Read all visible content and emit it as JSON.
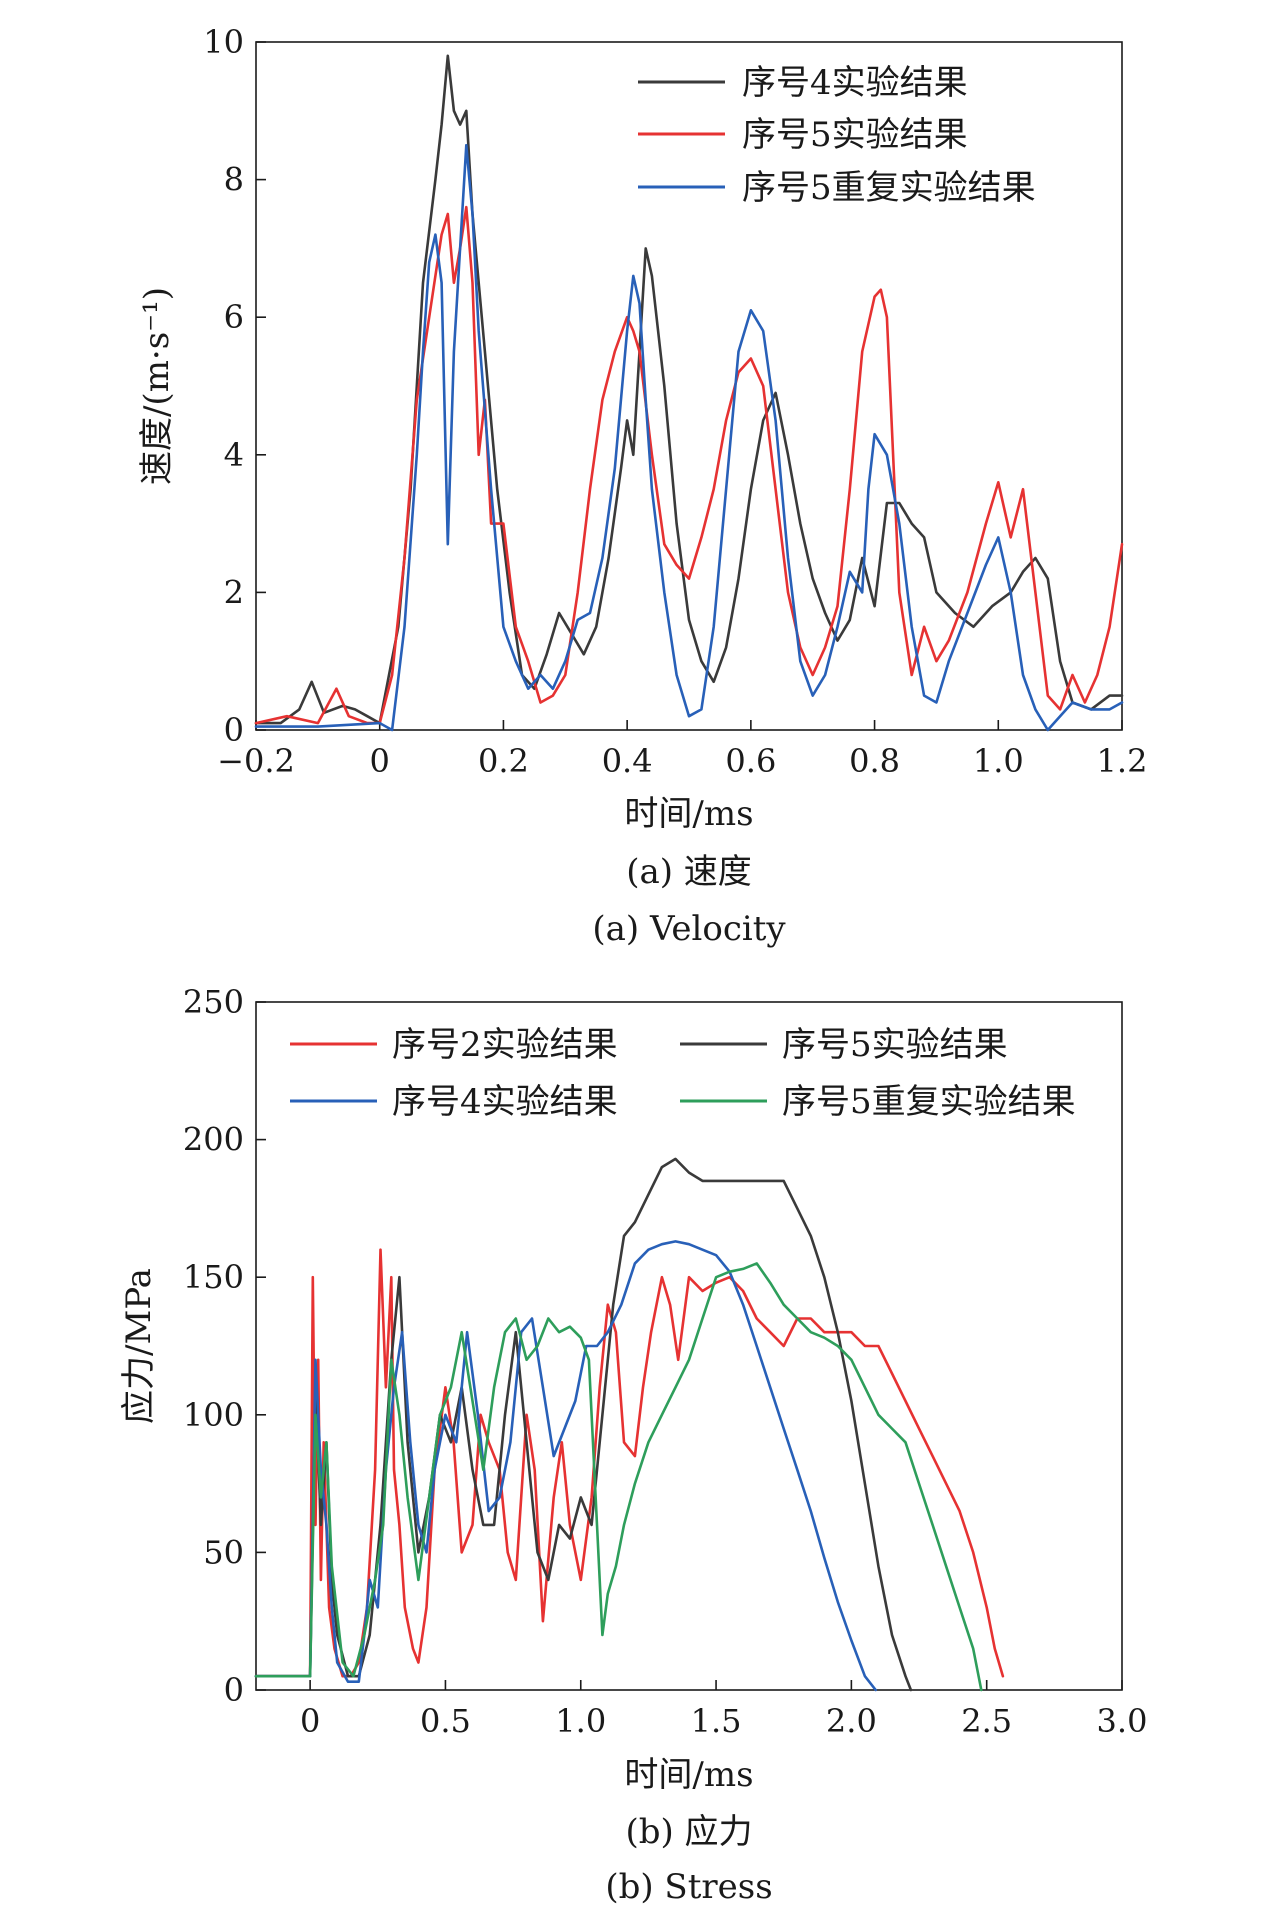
{
  "chart_data": [
    {
      "type": "line",
      "xlabel": "时间/ms",
      "ylabel": "速度/(m·s⁻¹)",
      "xlim": [
        -0.2,
        1.2
      ],
      "ylim": [
        0,
        10
      ],
      "xticks": [
        -0.2,
        0,
        0.2,
        0.4,
        0.6,
        0.8,
        1.0,
        1.2
      ],
      "xtick_labels": [
        "−0.2",
        "0",
        "0.2",
        "0.4",
        "0.6",
        "0.8",
        "1.0",
        "1.2"
      ],
      "yticks": [
        0,
        2,
        4,
        6,
        8,
        10
      ],
      "ytick_labels": [
        "0",
        "2",
        "4",
        "6",
        "8",
        "10"
      ],
      "grid": false,
      "legend_position": "top-right",
      "caption_cn": "(a) 速度",
      "caption_en": "(a) Velocity",
      "series": [
        {
          "name": "序号4实验结果",
          "color": "#3a3a3a",
          "x": [
            -0.2,
            -0.16,
            -0.13,
            -0.11,
            -0.09,
            -0.06,
            -0.04,
            -0.02,
            0,
            0.03,
            0.05,
            0.07,
            0.09,
            0.1,
            0.11,
            0.12,
            0.13,
            0.14,
            0.15,
            0.17,
            0.19,
            0.21,
            0.23,
            0.25,
            0.27,
            0.29,
            0.31,
            0.33,
            0.35,
            0.37,
            0.39,
            0.4,
            0.41,
            0.42,
            0.43,
            0.44,
            0.46,
            0.48,
            0.5,
            0.52,
            0.54,
            0.56,
            0.58,
            0.6,
            0.62,
            0.64,
            0.66,
            0.68,
            0.7,
            0.72,
            0.74,
            0.76,
            0.78,
            0.8,
            0.82,
            0.84,
            0.86,
            0.88,
            0.9,
            0.93,
            0.96,
            0.99,
            1.02,
            1.04,
            1.06,
            1.08,
            1.1,
            1.12,
            1.15,
            1.18,
            1.2
          ],
          "y": [
            0.1,
            0.1,
            0.3,
            0.7,
            0.25,
            0.35,
            0.3,
            0.2,
            0.1,
            1.5,
            3.5,
            6.5,
            8.0,
            8.8,
            9.8,
            9.0,
            8.8,
            9.0,
            7.5,
            5.5,
            3.5,
            2.0,
            0.8,
            0.6,
            1.1,
            1.7,
            1.4,
            1.1,
            1.5,
            2.5,
            3.8,
            4.5,
            4.0,
            5.5,
            7.0,
            6.6,
            5.0,
            3.0,
            1.6,
            1.0,
            0.7,
            1.2,
            2.2,
            3.5,
            4.5,
            4.9,
            4.0,
            3.0,
            2.2,
            1.7,
            1.3,
            1.6,
            2.5,
            1.8,
            3.3,
            3.3,
            3.0,
            2.8,
            2.0,
            1.7,
            1.5,
            1.8,
            2.0,
            2.3,
            2.5,
            2.2,
            1.0,
            0.4,
            0.3,
            0.5,
            0.5
          ]
        },
        {
          "name": "序号5实验结果",
          "color": "#e63232",
          "x": [
            -0.2,
            -0.15,
            -0.1,
            -0.07,
            -0.05,
            -0.02,
            0,
            0.02,
            0.04,
            0.06,
            0.08,
            0.1,
            0.11,
            0.12,
            0.13,
            0.14,
            0.15,
            0.16,
            0.17,
            0.18,
            0.2,
            0.22,
            0.24,
            0.26,
            0.28,
            0.3,
            0.32,
            0.34,
            0.36,
            0.38,
            0.4,
            0.41,
            0.42,
            0.44,
            0.46,
            0.48,
            0.5,
            0.52,
            0.54,
            0.56,
            0.58,
            0.6,
            0.62,
            0.64,
            0.66,
            0.68,
            0.7,
            0.72,
            0.74,
            0.76,
            0.78,
            0.8,
            0.81,
            0.82,
            0.84,
            0.86,
            0.88,
            0.9,
            0.92,
            0.95,
            0.98,
            1.0,
            1.02,
            1.04,
            1.06,
            1.08,
            1.1,
            1.12,
            1.14,
            1.16,
            1.18,
            1.2
          ],
          "y": [
            0.1,
            0.2,
            0.1,
            0.6,
            0.2,
            0.1,
            0.1,
            0.8,
            2.5,
            4.8,
            6.0,
            7.2,
            7.5,
            6.5,
            7.0,
            7.6,
            6.5,
            4.0,
            4.8,
            3.0,
            3.0,
            1.5,
            1.0,
            0.4,
            0.5,
            0.8,
            2.0,
            3.5,
            4.8,
            5.5,
            6.0,
            5.8,
            5.5,
            4.0,
            2.7,
            2.4,
            2.2,
            2.8,
            3.5,
            4.5,
            5.2,
            5.4,
            5.0,
            3.5,
            2.0,
            1.2,
            0.8,
            1.2,
            1.8,
            3.5,
            5.5,
            6.3,
            6.4,
            6.0,
            2.0,
            0.8,
            1.5,
            1.0,
            1.3,
            2.0,
            3.0,
            3.6,
            2.8,
            3.5,
            2.0,
            0.5,
            0.3,
            0.8,
            0.4,
            0.8,
            1.5,
            2.7
          ]
        },
        {
          "name": "序号5重复实验结果",
          "color": "#2860b8",
          "x": [
            -0.2,
            -0.1,
            0,
            0.02,
            0.04,
            0.06,
            0.07,
            0.08,
            0.09,
            0.1,
            0.11,
            0.12,
            0.13,
            0.14,
            0.15,
            0.16,
            0.18,
            0.2,
            0.22,
            0.24,
            0.26,
            0.28,
            0.3,
            0.32,
            0.34,
            0.36,
            0.38,
            0.4,
            0.41,
            0.42,
            0.43,
            0.44,
            0.46,
            0.48,
            0.5,
            0.52,
            0.54,
            0.56,
            0.58,
            0.6,
            0.62,
            0.64,
            0.66,
            0.68,
            0.7,
            0.72,
            0.74,
            0.76,
            0.78,
            0.79,
            0.8,
            0.82,
            0.84,
            0.86,
            0.88,
            0.9,
            0.92,
            0.95,
            0.98,
            1.0,
            1.02,
            1.04,
            1.06,
            1.08,
            1.1,
            1.12,
            1.15,
            1.18,
            1.2
          ],
          "y": [
            0.05,
            0.05,
            0.1,
            0.0,
            1.5,
            4.0,
            5.5,
            6.8,
            7.2,
            6.5,
            2.7,
            5.5,
            7.0,
            8.5,
            7.5,
            5.8,
            3.5,
            1.5,
            1.0,
            0.6,
            0.8,
            0.6,
            1.0,
            1.6,
            1.7,
            2.5,
            3.8,
            5.8,
            6.6,
            6.2,
            4.8,
            3.5,
            2.0,
            0.8,
            0.2,
            0.3,
            1.5,
            3.5,
            5.5,
            6.1,
            5.8,
            4.5,
            2.5,
            1.0,
            0.5,
            0.8,
            1.5,
            2.3,
            2.0,
            3.5,
            4.3,
            4.0,
            3.0,
            1.5,
            0.5,
            0.4,
            1.0,
            1.7,
            2.4,
            2.8,
            2.0,
            0.8,
            0.3,
            0.0,
            0.2,
            0.4,
            0.3,
            0.3,
            0.4
          ]
        }
      ]
    },
    {
      "type": "line",
      "xlabel": "时间/ms",
      "ylabel": "应力/MPa",
      "xlim": [
        -0.2,
        3.0
      ],
      "ylim": [
        0,
        250
      ],
      "xticks": [
        0,
        0.5,
        1.0,
        1.5,
        2.0,
        2.5,
        3.0
      ],
      "xtick_labels": [
        "0",
        "0.5",
        "1.0",
        "1.5",
        "2.0",
        "2.5",
        "3.0"
      ],
      "yticks": [
        0,
        50,
        100,
        150,
        200,
        250
      ],
      "ytick_labels": [
        "0",
        "50",
        "100",
        "150",
        "200",
        "250"
      ],
      "grid": false,
      "legend_position": "top",
      "caption_cn": "(b) 应力",
      "caption_en": "(b) Stress",
      "series": [
        {
          "name": "序号2实验结果",
          "color": "#e63232",
          "x": [
            -0.2,
            0,
            0.01,
            0.02,
            0.03,
            0.04,
            0.05,
            0.07,
            0.09,
            0.12,
            0.15,
            0.18,
            0.21,
            0.24,
            0.26,
            0.28,
            0.3,
            0.31,
            0.33,
            0.35,
            0.38,
            0.4,
            0.43,
            0.46,
            0.5,
            0.53,
            0.56,
            0.6,
            0.63,
            0.66,
            0.7,
            0.73,
            0.76,
            0.8,
            0.83,
            0.86,
            0.9,
            0.93,
            0.96,
            1.0,
            1.04,
            1.07,
            1.1,
            1.13,
            1.16,
            1.2,
            1.23,
            1.26,
            1.3,
            1.33,
            1.36,
            1.4,
            1.45,
            1.5,
            1.55,
            1.6,
            1.65,
            1.7,
            1.75,
            1.8,
            1.85,
            1.9,
            1.95,
            2.0,
            2.05,
            2.1,
            2.15,
            2.2,
            2.25,
            2.3,
            2.35,
            2.4,
            2.45,
            2.5,
            2.53,
            2.56
          ],
          "y": [
            5,
            5,
            150,
            60,
            120,
            40,
            90,
            30,
            15,
            5,
            5,
            10,
            30,
            80,
            160,
            110,
            150,
            80,
            60,
            30,
            15,
            10,
            30,
            80,
            110,
            90,
            50,
            60,
            100,
            90,
            80,
            50,
            40,
            100,
            80,
            25,
            70,
            90,
            60,
            40,
            70,
            110,
            140,
            130,
            90,
            85,
            110,
            130,
            150,
            140,
            120,
            150,
            145,
            148,
            150,
            145,
            135,
            130,
            125,
            135,
            135,
            130,
            130,
            130,
            125,
            125,
            115,
            105,
            95,
            85,
            75,
            65,
            50,
            30,
            15,
            5
          ]
        },
        {
          "name": "序号5实验结果",
          "color": "#3a3a3a",
          "x": [
            -0.2,
            0,
            0.02,
            0.04,
            0.06,
            0.08,
            0.1,
            0.14,
            0.18,
            0.22,
            0.26,
            0.3,
            0.33,
            0.36,
            0.4,
            0.44,
            0.48,
            0.52,
            0.56,
            0.6,
            0.64,
            0.68,
            0.72,
            0.76,
            0.8,
            0.84,
            0.88,
            0.92,
            0.96,
            1.0,
            1.04,
            1.08,
            1.12,
            1.16,
            1.2,
            1.25,
            1.3,
            1.35,
            1.4,
            1.45,
            1.5,
            1.55,
            1.6,
            1.65,
            1.7,
            1.75,
            1.8,
            1.85,
            1.9,
            1.95,
            2.0,
            2.05,
            2.1,
            2.15,
            2.2,
            2.22
          ],
          "y": [
            5,
            5,
            110,
            60,
            90,
            40,
            20,
            5,
            5,
            20,
            60,
            120,
            150,
            90,
            50,
            70,
            100,
            90,
            110,
            80,
            60,
            60,
            100,
            130,
            90,
            50,
            40,
            60,
            55,
            70,
            60,
            100,
            140,
            165,
            170,
            180,
            190,
            193,
            188,
            185,
            185,
            185,
            185,
            185,
            185,
            185,
            175,
            165,
            150,
            130,
            105,
            75,
            45,
            20,
            5,
            0
          ]
        },
        {
          "name": "序号4实验结果",
          "color": "#2860b8",
          "x": [
            -0.2,
            0,
            0.02,
            0.04,
            0.06,
            0.08,
            0.1,
            0.14,
            0.18,
            0.2,
            0.22,
            0.25,
            0.28,
            0.31,
            0.34,
            0.37,
            0.4,
            0.43,
            0.46,
            0.5,
            0.54,
            0.58,
            0.62,
            0.66,
            0.7,
            0.74,
            0.78,
            0.82,
            0.86,
            0.9,
            0.94,
            0.98,
            1.02,
            1.06,
            1.1,
            1.15,
            1.2,
            1.25,
            1.3,
            1.35,
            1.4,
            1.45,
            1.5,
            1.55,
            1.6,
            1.65,
            1.7,
            1.75,
            1.8,
            1.85,
            1.9,
            1.95,
            2.0,
            2.05,
            2.09
          ],
          "y": [
            5,
            5,
            120,
            80,
            60,
            30,
            10,
            3,
            3,
            20,
            40,
            30,
            80,
            110,
            130,
            90,
            60,
            50,
            80,
            100,
            90,
            130,
            100,
            65,
            70,
            90,
            130,
            135,
            110,
            85,
            95,
            105,
            125,
            125,
            130,
            140,
            155,
            160,
            162,
            163,
            162,
            160,
            158,
            152,
            140,
            125,
            110,
            95,
            80,
            65,
            48,
            32,
            18,
            5,
            0
          ]
        },
        {
          "name": "序号5重复实验结果",
          "color": "#2e9e5b",
          "x": [
            -0.2,
            0,
            0.02,
            0.04,
            0.06,
            0.08,
            0.12,
            0.16,
            0.2,
            0.24,
            0.27,
            0.3,
            0.33,
            0.36,
            0.4,
            0.44,
            0.48,
            0.52,
            0.56,
            0.6,
            0.64,
            0.68,
            0.72,
            0.76,
            0.8,
            0.84,
            0.88,
            0.92,
            0.96,
            1.0,
            1.03,
            1.06,
            1.08,
            1.1,
            1.13,
            1.16,
            1.2,
            1.25,
            1.3,
            1.35,
            1.4,
            1.45,
            1.5,
            1.55,
            1.6,
            1.65,
            1.7,
            1.75,
            1.8,
            1.85,
            1.9,
            1.95,
            2.0,
            2.05,
            2.1,
            2.15,
            2.2,
            2.25,
            2.3,
            2.35,
            2.4,
            2.45,
            2.48
          ],
          "y": [
            5,
            5,
            100,
            70,
            90,
            45,
            10,
            5,
            20,
            40,
            60,
            120,
            100,
            70,
            40,
            70,
            100,
            110,
            130,
            105,
            80,
            110,
            130,
            135,
            120,
            125,
            135,
            130,
            132,
            128,
            120,
            60,
            20,
            35,
            45,
            60,
            75,
            90,
            100,
            110,
            120,
            135,
            150,
            152,
            153,
            155,
            148,
            140,
            135,
            130,
            128,
            125,
            120,
            110,
            100,
            95,
            90,
            75,
            60,
            45,
            30,
            15,
            0
          ]
        }
      ]
    }
  ]
}
